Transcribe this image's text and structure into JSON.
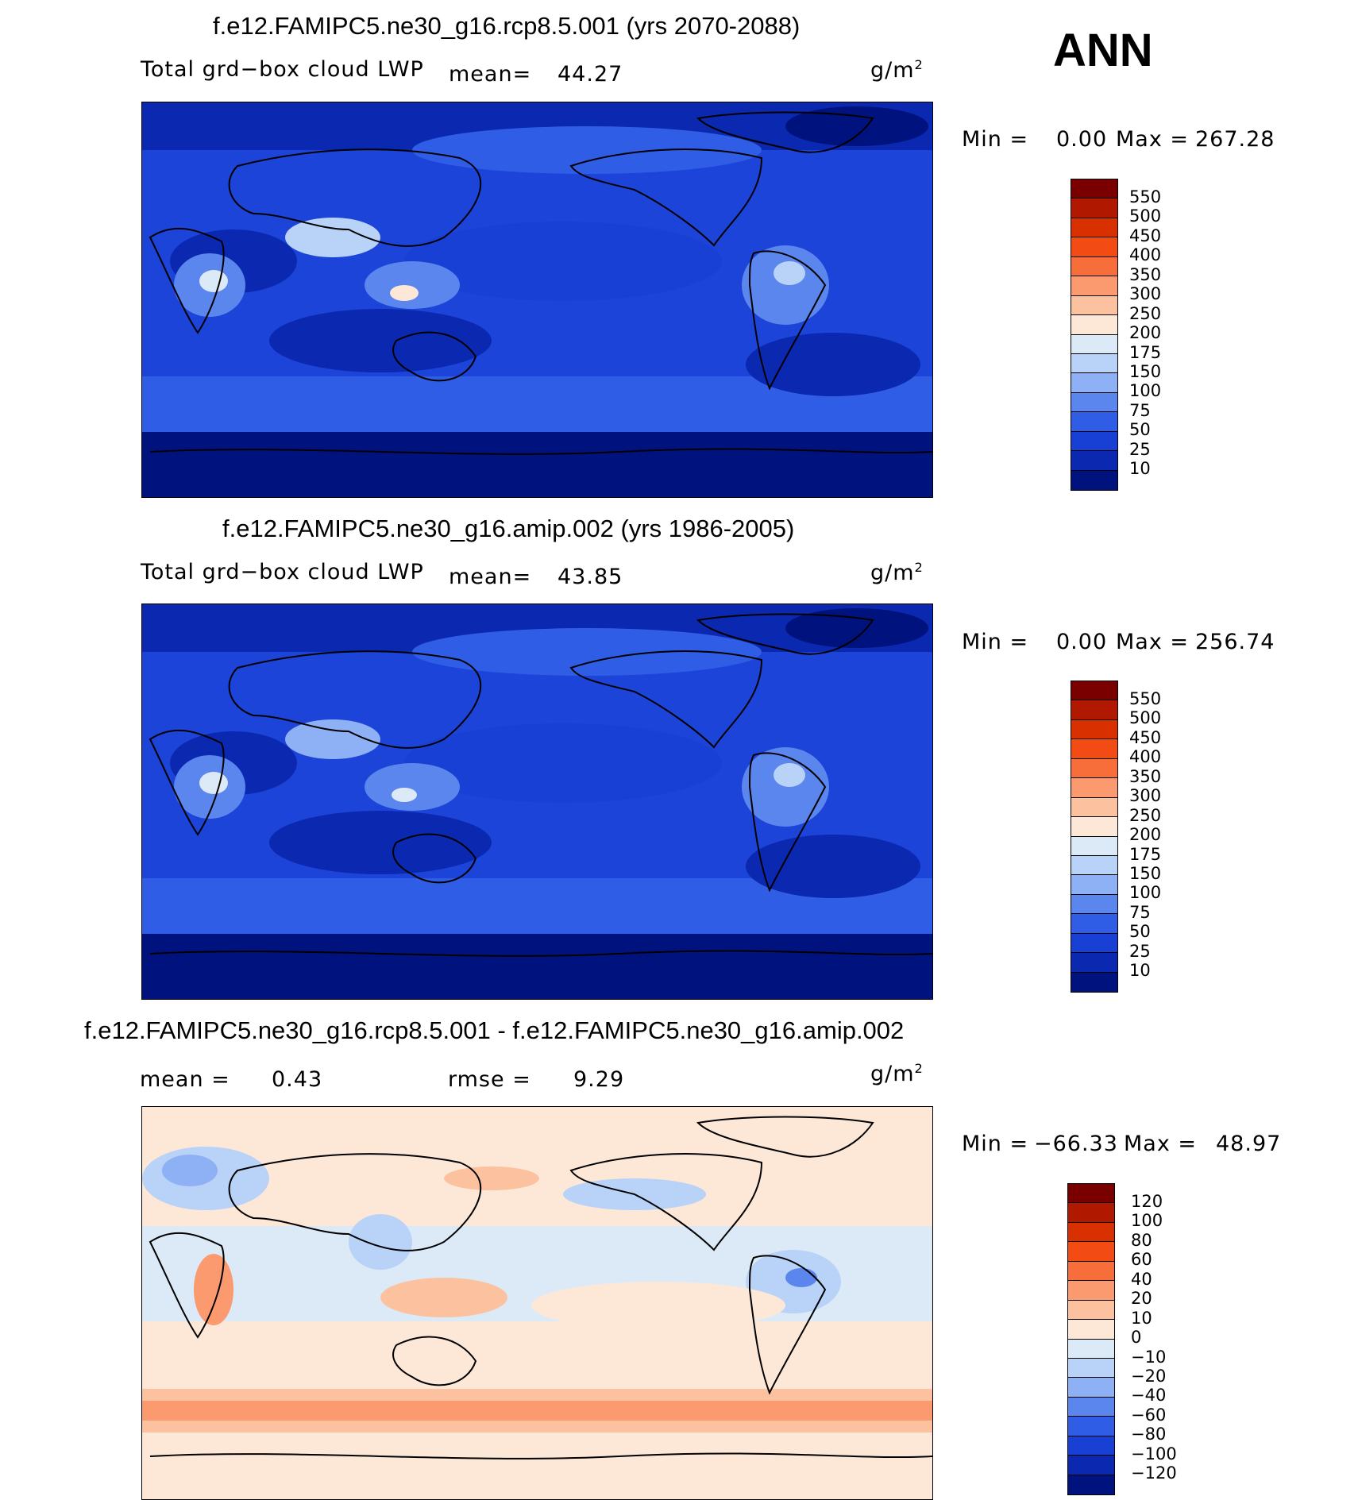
{
  "header": {
    "season": "ANN"
  },
  "panels": [
    {
      "title": "f.e12.FAMIPC5.ne30_g16.rcp8.5.001 (yrs 2070-2088)",
      "variable": "Total grd−box cloud LWP",
      "mean_label": "mean=",
      "mean_value": "44.27",
      "units": "g/m",
      "units_power": "2",
      "min_label": "Min =",
      "min_value": "0.00",
      "max_label": "Max =",
      "max_value": "267.28"
    },
    {
      "title": "f.e12.FAMIPC5.ne30_g16.amip.002 (yrs 1986-2005)",
      "variable": "Total grd−box cloud LWP",
      "mean_label": "mean=",
      "mean_value": "43.85",
      "units": "g/m",
      "units_power": "2",
      "min_label": "Min =",
      "min_value": "0.00",
      "max_label": "Max =",
      "max_value": "256.74"
    },
    {
      "title": "f.e12.FAMIPC5.ne30_g16.rcp8.5.001 - f.e12.FAMIPC5.ne30_g16.amip.002",
      "mean_label": "mean =",
      "mean_value": "0.43",
      "rmse_label": "rmse =",
      "rmse_value": "9.29",
      "units": "g/m",
      "units_power": "2",
      "min_label": "Min =",
      "min_value": "−66.33",
      "max_label": "Max =",
      "max_value": "48.97"
    }
  ],
  "colorbars": {
    "absolute": {
      "labels": [
        "550",
        "500",
        "450",
        "400",
        "350",
        "300",
        "250",
        "200",
        "175",
        "150",
        "100",
        "75",
        "50",
        "25",
        "10"
      ],
      "colors": [
        "#7a0000",
        "#b01800",
        "#d93000",
        "#f24c14",
        "#f76e3a",
        "#fa9a6e",
        "#fcc2a0",
        "#fde8d8",
        "#dceaf8",
        "#b8d2f8",
        "#8eb0f4",
        "#5b86ee",
        "#2f5de6",
        "#1940d4",
        "#0a28b0",
        "#00127e"
      ]
    },
    "difference": {
      "labels": [
        "120",
        "100",
        "80",
        "60",
        "40",
        "20",
        "10",
        "0",
        "−10",
        "−20",
        "−40",
        "−60",
        "−80",
        "−100",
        "−120"
      ],
      "colors": [
        "#7a0000",
        "#b01800",
        "#d93000",
        "#f24c14",
        "#f76e3a",
        "#fa9a6e",
        "#fcc2a0",
        "#fde8d8",
        "#dceaf8",
        "#b8d2f8",
        "#8eb0f4",
        "#5b86ee",
        "#2f5de6",
        "#1940d4",
        "#0a28b0",
        "#00127e"
      ]
    }
  }
}
